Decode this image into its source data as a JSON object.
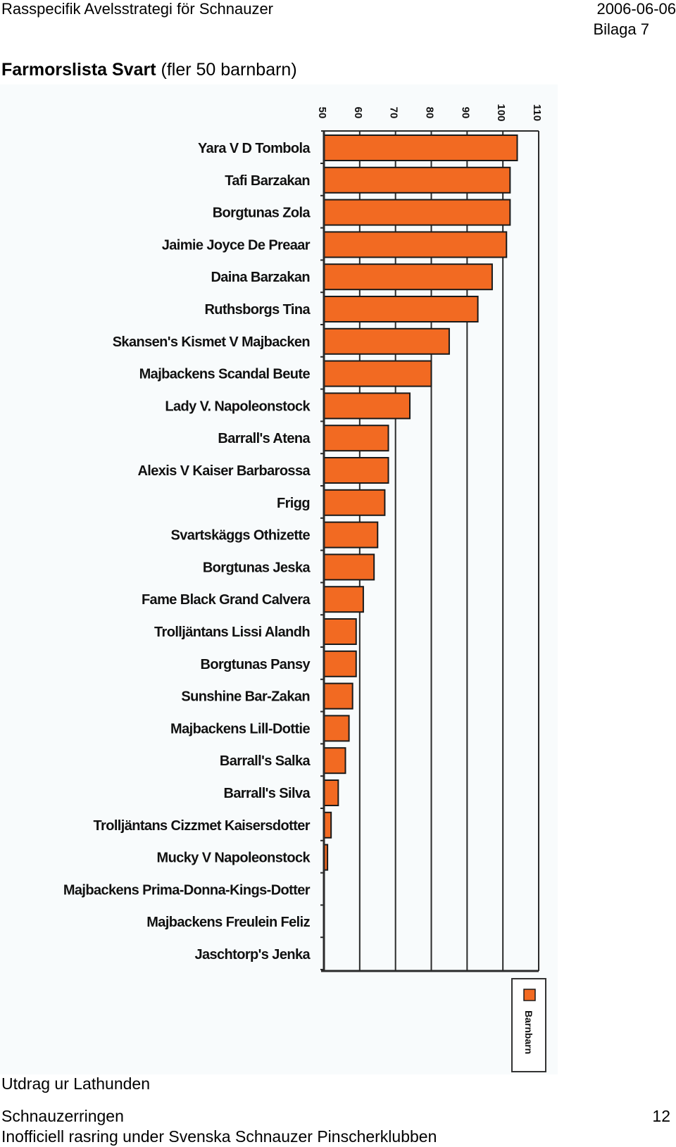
{
  "header": {
    "title": "Rasspecifik Avelsstrategi för Schnauzer",
    "date": "2006-06-06",
    "appendix": "Bilaga 7"
  },
  "heading": {
    "bold": "Farmorslista Svart",
    "normal": "(fler 50 barnbarn)"
  },
  "footer": {
    "source": "Utdrag ur Lathunden",
    "club": "Schnauzerringen",
    "page_number": "12",
    "subtitle": "Inofficiell rasring under Svenska Schnauzer Pinscherklubben"
  },
  "colors": {
    "bar": "#f26a22",
    "bar_stroke": "#1a1a1a",
    "grid": "#2a2a2a"
  },
  "chart_data": {
    "type": "bar",
    "orientation": "horizontal",
    "categories": [
      "Yara V D Tombola",
      "Tafi Barzakan",
      "Borgtunas Zola",
      "Jaimie Joyce De Preaar",
      "Daina Barzakan",
      "Ruthsborgs Tina",
      "Skansen's Kismet V Majbacken",
      "Majbackens Scandal Beute",
      "Lady V. Napoleonstock",
      "Barrall's Atena",
      "Alexis V Kaiser Barbarossa",
      "Frigg",
      "Svartskäggs Othizette",
      "Borgtunas Jeska",
      "Fame Black Grand Calvera",
      "Trolljäntans Lissi Alandh",
      "Borgtunas Pansy",
      "Sunshine Bar-Zakan",
      "Majbackens Lill-Dottie",
      "Barrall's Salka",
      "Barrall's Silva",
      "Trolljäntans Cizzmet Kaisersdotter",
      "Mucky V Napoleonstock",
      "Majbackens Prima-Donna-Kings-Dotter",
      "Majbackens Freulein Feliz",
      "Jaschtorp's Jenka"
    ],
    "series": [
      {
        "name": "Barnbarn",
        "values": [
          104,
          102,
          102,
          101,
          97,
          93,
          85,
          80,
          74,
          68,
          68,
          67,
          65,
          64,
          61,
          59,
          59,
          58,
          57,
          56,
          54,
          52,
          51,
          50,
          50,
          50
        ]
      }
    ],
    "xlim": [
      50,
      110
    ],
    "xticks": [
      "50",
      "60",
      "70",
      "80",
      "90",
      "100",
      "110"
    ],
    "grid": true,
    "legend_position": "bottom-right"
  }
}
